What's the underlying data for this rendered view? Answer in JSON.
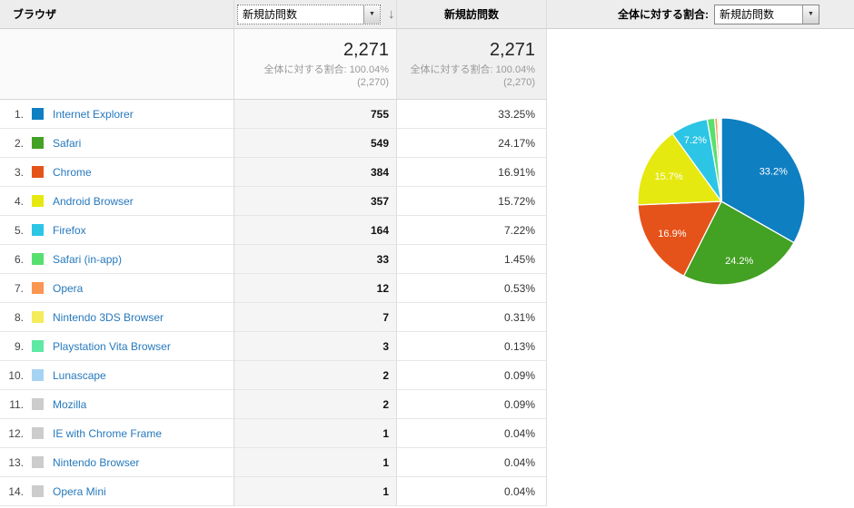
{
  "header": {
    "dimension_label": "ブラウザ",
    "metric_select_value": "新規訪問数",
    "sort_arrow": "↓",
    "dropdown_arrow": "▼",
    "metric_column_label": "新規訪問数",
    "percent_of_total_label": "全体に対する割合:",
    "percent_select_value": "新規訪問数"
  },
  "summary": {
    "total": "2,271",
    "percent_line": "全体に対する割合: 100.04%",
    "baseline": "(2,270)"
  },
  "table": {
    "rows": [
      {
        "rank": "1.",
        "label": "Internet Explorer",
        "color": "#0e7fc1",
        "value": "755",
        "percent": "33.25%"
      },
      {
        "rank": "2.",
        "label": "Safari",
        "color": "#43a123",
        "value": "549",
        "percent": "24.17%"
      },
      {
        "rank": "3.",
        "label": "Chrome",
        "color": "#e5531a",
        "value": "384",
        "percent": "16.91%"
      },
      {
        "rank": "4.",
        "label": "Android Browser",
        "color": "#e6e90f",
        "value": "357",
        "percent": "15.72%"
      },
      {
        "rank": "5.",
        "label": "Firefox",
        "color": "#2cc5e5",
        "value": "164",
        "percent": "7.22%"
      },
      {
        "rank": "6.",
        "label": "Safari (in-app)",
        "color": "#57e06e",
        "value": "33",
        "percent": "1.45%"
      },
      {
        "rank": "7.",
        "label": "Opera",
        "color": "#fb9552",
        "value": "12",
        "percent": "0.53%"
      },
      {
        "rank": "8.",
        "label": "Nintendo 3DS Browser",
        "color": "#f5ec5c",
        "value": "7",
        "percent": "0.31%"
      },
      {
        "rank": "9.",
        "label": "Playstation Vita Browser",
        "color": "#5ee9a4",
        "value": "3",
        "percent": "0.13%"
      },
      {
        "rank": "10.",
        "label": "Lunascape",
        "color": "#a7d3f3",
        "value": "2",
        "percent": "0.09%"
      },
      {
        "rank": "11.",
        "label": "Mozilla",
        "color": "#cccccc",
        "value": "2",
        "percent": "0.09%"
      },
      {
        "rank": "12.",
        "label": "IE with Chrome Frame",
        "color": "#cccccc",
        "value": "1",
        "percent": "0.04%"
      },
      {
        "rank": "13.",
        "label": "Nintendo Browser",
        "color": "#cccccc",
        "value": "1",
        "percent": "0.04%"
      },
      {
        "rank": "14.",
        "label": "Opera Mini",
        "color": "#cccccc",
        "value": "1",
        "percent": "0.04%"
      }
    ]
  },
  "chart_data": {
    "type": "pie",
    "categories": [
      "Internet Explorer",
      "Safari",
      "Chrome",
      "Android Browser",
      "Firefox",
      "Safari (in-app)",
      "Opera",
      "Nintendo 3DS Browser",
      "Playstation Vita Browser",
      "Lunascape",
      "Mozilla",
      "IE with Chrome Frame",
      "Nintendo Browser",
      "Opera Mini"
    ],
    "values": [
      755,
      549,
      384,
      357,
      164,
      33,
      12,
      7,
      3,
      2,
      2,
      1,
      1,
      1
    ],
    "total": 2271,
    "colors": [
      "#0e7fc1",
      "#43a123",
      "#e5531a",
      "#e6e90f",
      "#2cc5e5",
      "#57e06e",
      "#fb9552",
      "#f5ec5c",
      "#5ee9a4",
      "#a7d3f3",
      "#cccccc",
      "#cccccc",
      "#cccccc",
      "#cccccc"
    ],
    "slice_labels": [
      "33.2%",
      "24.2%",
      "16.9%",
      "15.7%",
      "7.2%",
      null,
      null,
      null,
      null,
      null,
      null,
      null,
      null,
      null
    ],
    "start_angle_deg": 0,
    "direction": "clockwise",
    "legend_position": "table-left"
  }
}
